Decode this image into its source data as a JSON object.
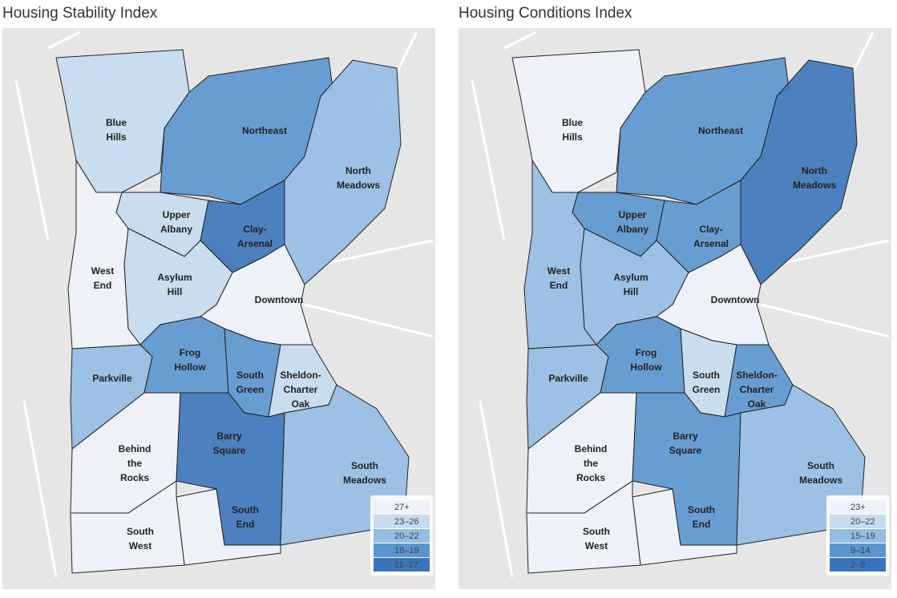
{
  "maps": [
    {
      "title": "Housing Stability Index",
      "legend": [
        {
          "label": "27+",
          "color": "#eef2fa"
        },
        {
          "label": "23–26",
          "color": "#c6dbee"
        },
        {
          "label": "20–22",
          "color": "#93bde3"
        },
        {
          "label": "18–19",
          "color": "#5a95cf"
        },
        {
          "label": "11–17",
          "color": "#3b74ba"
        }
      ],
      "neighborhoods": [
        {
          "label": [
            "Blue",
            "Hills"
          ],
          "color": "#c6dbee"
        },
        {
          "label": [
            "Northeast"
          ],
          "color": "#5a95cf"
        },
        {
          "label": [
            "North",
            "Meadows"
          ],
          "color": "#93bde3"
        },
        {
          "label": [
            "Upper",
            "Albany"
          ],
          "color": "#c6dbee"
        },
        {
          "label": [
            "Clay-",
            "Arsenal"
          ],
          "color": "#3b74ba"
        },
        {
          "label": [
            "West",
            "End"
          ],
          "color": "#eef2fa"
        },
        {
          "label": [
            "Asylum",
            "Hill"
          ],
          "color": "#c6dbee"
        },
        {
          "label": [
            "Downtown"
          ],
          "color": "#eef2fa"
        },
        {
          "label": [
            "Parkville"
          ],
          "color": "#93bde3"
        },
        {
          "label": [
            "Frog",
            "Hollow"
          ],
          "color": "#5a95cf"
        },
        {
          "label": [
            "South",
            "Green"
          ],
          "color": "#5a95cf"
        },
        {
          "label": [
            "Sheldon-",
            "Charter",
            "Oak"
          ],
          "color": "#c6dbee"
        },
        {
          "label": [
            "Behind",
            "the",
            "Rocks"
          ],
          "color": "#eef2fa"
        },
        {
          "label": [
            "Barry",
            "Square"
          ],
          "color": "#3b74ba"
        },
        {
          "label": [
            "South",
            "Meadows"
          ],
          "color": "#93bde3"
        },
        {
          "label": [
            "South",
            "End"
          ],
          "color": "#eef2fa"
        },
        {
          "label": [
            "South",
            "West"
          ],
          "color": "#eef2fa"
        }
      ]
    },
    {
      "title": "Housing Conditions Index",
      "legend": [
        {
          "label": "23+",
          "color": "#eef2fa"
        },
        {
          "label": "20–22",
          "color": "#c6dbee"
        },
        {
          "label": "15–19",
          "color": "#93bde3"
        },
        {
          "label": "9–14",
          "color": "#5a95cf"
        },
        {
          "label": "2–8",
          "color": "#3b74ba"
        }
      ],
      "neighborhoods": [
        {
          "label": [
            "Blue",
            "Hills"
          ],
          "color": "#eef2fa"
        },
        {
          "label": [
            "Northeast"
          ],
          "color": "#5a95cf"
        },
        {
          "label": [
            "North",
            "Meadows"
          ],
          "color": "#3b74ba"
        },
        {
          "label": [
            "Upper",
            "Albany"
          ],
          "color": "#5a95cf"
        },
        {
          "label": [
            "Clay-",
            "Arsenal"
          ],
          "color": "#5a95cf"
        },
        {
          "label": [
            "West",
            "End"
          ],
          "color": "#93bde3"
        },
        {
          "label": [
            "Asylum",
            "Hill"
          ],
          "color": "#93bde3"
        },
        {
          "label": [
            "Downtown"
          ],
          "color": "#eef2fa"
        },
        {
          "label": [
            "Parkville"
          ],
          "color": "#93bde3"
        },
        {
          "label": [
            "Frog",
            "Hollow"
          ],
          "color": "#5a95cf"
        },
        {
          "label": [
            "South",
            "Green"
          ],
          "color": "#c6dbee"
        },
        {
          "label": [
            "Sheldon-",
            "Charter",
            "Oak"
          ],
          "color": "#5a95cf"
        },
        {
          "label": [
            "Behind",
            "the",
            "Rocks"
          ],
          "color": "#eef2fa"
        },
        {
          "label": [
            "Barry",
            "Square"
          ],
          "color": "#5a95cf"
        },
        {
          "label": [
            "South",
            "Meadows"
          ],
          "color": "#93bde3"
        },
        {
          "label": [
            "South",
            "End"
          ],
          "color": "#eef2fa"
        },
        {
          "label": [
            "South",
            "West"
          ],
          "color": "#eef2fa"
        }
      ]
    }
  ]
}
